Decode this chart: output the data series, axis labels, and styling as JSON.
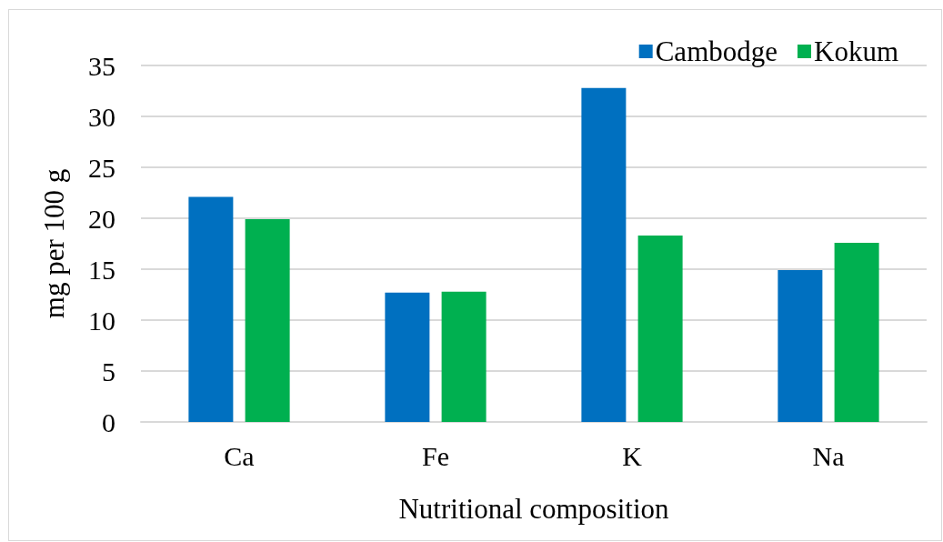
{
  "chart_data": {
    "type": "bar",
    "xlabel": "Nutritional composition",
    "ylabel": "mg per 100 g",
    "categories": [
      "Ca",
      "Fe",
      "K",
      "Na"
    ],
    "series": [
      {
        "name": "Cambodge",
        "color": "#0070c0",
        "values": [
          22.1,
          12.7,
          32.8,
          14.9
        ]
      },
      {
        "name": "Kokum",
        "color": "#00b050",
        "values": [
          19.9,
          12.8,
          18.3,
          17.6
        ]
      }
    ],
    "ylim": [
      0,
      35
    ],
    "yticks": [
      0,
      5,
      10,
      15,
      20,
      25,
      30,
      35
    ],
    "grid": "y",
    "legend": "top right"
  }
}
